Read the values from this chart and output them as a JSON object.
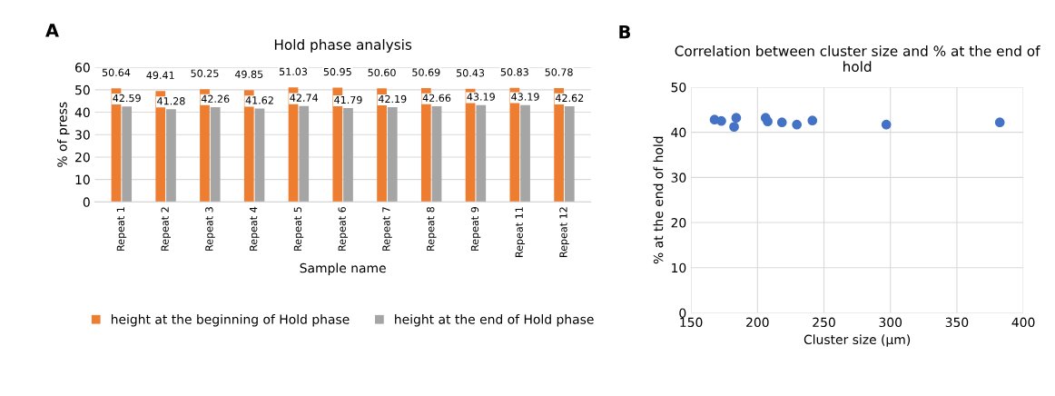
{
  "chart_data": [
    {
      "type": "bar",
      "title": "Hold phase analysis",
      "xlabel": "Sample name",
      "ylabel": "% of press",
      "annotations": [
        "A"
      ],
      "categories": [
        "Repeat 1",
        "Repeat 2",
        "Repeat 3",
        "Repeat 4",
        "Repeat 5",
        "Repeat 6",
        "Repeat 7",
        "Repeat 8",
        "Repeat 9",
        "Repeat 11",
        "Repeat 12"
      ],
      "series": [
        {
          "name": "height at the beginning of Hold phase",
          "color": "#ed7d31",
          "values": [
            50.64,
            49.41,
            50.25,
            49.85,
            51.03,
            50.95,
            50.6,
            50.69,
            50.43,
            50.83,
            50.78
          ],
          "value_labels": [
            "50.64",
            "49.41",
            "50.25",
            "49.85",
            "51.03",
            "50.95",
            "50.60",
            "50.69",
            "50.43",
            "50.83",
            "50.78"
          ]
        },
        {
          "name": "height at the end of Hold phase",
          "color": "#a5a5a5",
          "values": [
            42.59,
            41.28,
            42.26,
            41.62,
            42.74,
            41.79,
            42.19,
            42.66,
            43.19,
            43.19,
            42.62
          ],
          "value_labels": [
            "42.59",
            "41.28",
            "42.26",
            "41.62",
            "42.74",
            "41.79",
            "42.19",
            "42.66",
            "43.19",
            "43.19",
            "42.62"
          ]
        }
      ],
      "ylim": [
        0,
        60
      ],
      "yticks": [
        0,
        10,
        20,
        30,
        40,
        50,
        60
      ],
      "grid": "y",
      "legend": "bottom"
    },
    {
      "type": "scatter",
      "title": "Correlation between cluster size and % at the end of hold",
      "xlabel": "Cluster size (µm)",
      "ylabel": "% at the end of hold",
      "annotations": [
        "B"
      ],
      "x": [
        167.7,
        172.8,
        184,
        182.4,
        206.1,
        207.7,
        218.4,
        229.6,
        241.3,
        296.9,
        382.3
      ],
      "series": [
        {
          "color": "#4472c4",
          "values": [
            42.8,
            42.5,
            43.2,
            41.2,
            43.2,
            42.4,
            42.2,
            41.7,
            42.6,
            41.7,
            42.2
          ]
        }
      ],
      "xlim": [
        150,
        400
      ],
      "xticks": [
        150,
        200,
        250,
        300,
        350,
        400
      ],
      "ylim": [
        0,
        50
      ],
      "yticks": [
        0,
        10,
        20,
        30,
        40,
        50
      ],
      "grid": true,
      "marker": "circle"
    }
  ]
}
